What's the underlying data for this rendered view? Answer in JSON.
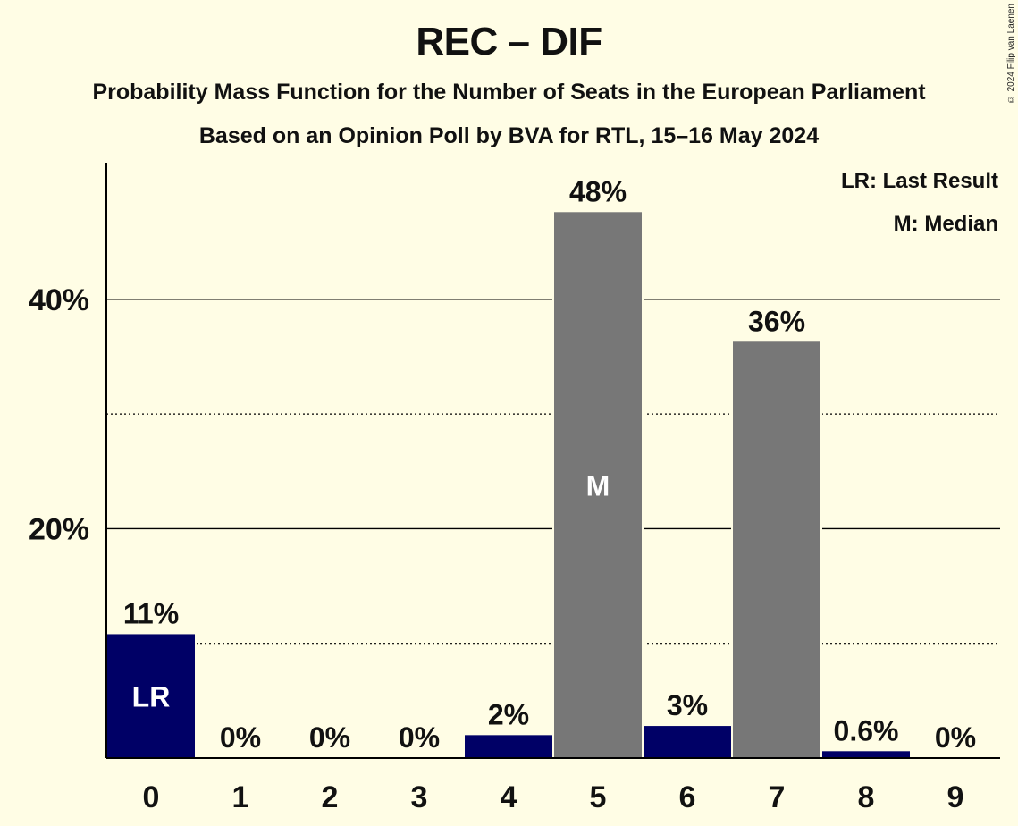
{
  "header": {
    "title": "REC – DIF",
    "subtitle1": "Probability Mass Function for the Number of Seats in the European Parliament",
    "subtitle2": "Based on an Opinion Poll by BVA for RTL, 15–16 May 2024",
    "copyright": "© 2024 Filip van Laenen"
  },
  "legend": {
    "last_result": "LR: Last Result",
    "median": "M: Median"
  },
  "colors": {
    "background": "#fffde5",
    "highlight_bar": "#000066",
    "default_bar": "#777777"
  },
  "chart_data": {
    "type": "bar",
    "title": "REC – DIF",
    "categories": [
      "0",
      "1",
      "2",
      "3",
      "4",
      "5",
      "6",
      "7",
      "8",
      "9"
    ],
    "values": [
      10.8,
      0,
      0,
      0,
      2.0,
      47.6,
      2.8,
      36.3,
      0.6,
      0
    ],
    "value_labels": [
      "11%",
      "0%",
      "0%",
      "0%",
      "2%",
      "48%",
      "3%",
      "36%",
      "0.6%",
      "0%"
    ],
    "bar_colors": [
      "#000066",
      "#000066",
      "#000066",
      "#000066",
      "#000066",
      "#777777",
      "#000066",
      "#777777",
      "#000066",
      "#000066"
    ],
    "bar_markers": {
      "0": "LR",
      "5": "M"
    },
    "ylim": [
      0,
      52
    ],
    "yticks": [
      20,
      40
    ],
    "ytick_labels": [
      "20%",
      "40%"
    ],
    "minor_gridlines": [
      10,
      30
    ],
    "legend_position": "top-right",
    "xlabel": "",
    "ylabel": ""
  }
}
